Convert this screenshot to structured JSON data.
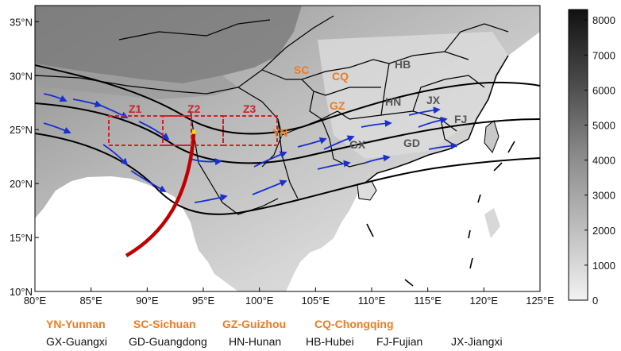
{
  "map": {
    "lon_ticks": [
      "80°E",
      "85°E",
      "90°E",
      "95°E",
      "100°E",
      "105°E",
      "110°E",
      "115°E",
      "120°E",
      "125°E"
    ],
    "lat_ticks": [
      "10°N",
      "15°N",
      "20°N",
      "25°N",
      "30°N",
      "35°N"
    ],
    "lon_range": [
      80,
      125
    ],
    "lat_range": [
      10,
      36.5
    ]
  },
  "colorbar": {
    "ticks": [
      "8000",
      "7000",
      "6000",
      "5000",
      "4000",
      "3000",
      "2000",
      "1000",
      "0"
    ],
    "range": [
      0,
      8300
    ],
    "colors": {
      "low": "#f2f2f2",
      "high": "#111111"
    }
  },
  "zones": [
    {
      "label": "Z1"
    },
    {
      "label": "Z2"
    },
    {
      "label": "Z3"
    }
  ],
  "province_labels": [
    {
      "code": "SC",
      "color": "#f07a20"
    },
    {
      "code": "CQ",
      "color": "#f07a20"
    },
    {
      "code": "GZ",
      "color": "#f07a20"
    },
    {
      "code": "YN",
      "color": "#f07a20"
    },
    {
      "code": "HB",
      "color": "#555555"
    },
    {
      "code": "HN",
      "color": "#555555"
    },
    {
      "code": "JX",
      "color": "#555555"
    },
    {
      "code": "FJ",
      "color": "#555555"
    },
    {
      "code": "GX",
      "color": "#555555"
    },
    {
      "code": "GD",
      "color": "#555555"
    }
  ],
  "legend": {
    "row1": [
      "YN-Yunnan",
      "SC-Sichuan",
      "GZ-Guizhou",
      "CQ-Chongqing"
    ],
    "row2": [
      "GX-Guangxi",
      "GD-Guangdong",
      "HN-Hunan",
      "HB-Hubei",
      "FJ-Fujian",
      "JX-Jiangxi"
    ]
  },
  "colors": {
    "flow_arrow": "#1a2fd0",
    "streamline": "#000000",
    "red_curve": "#c00000",
    "zone_box": "#d0202a",
    "origin_point": "#ffd700"
  }
}
